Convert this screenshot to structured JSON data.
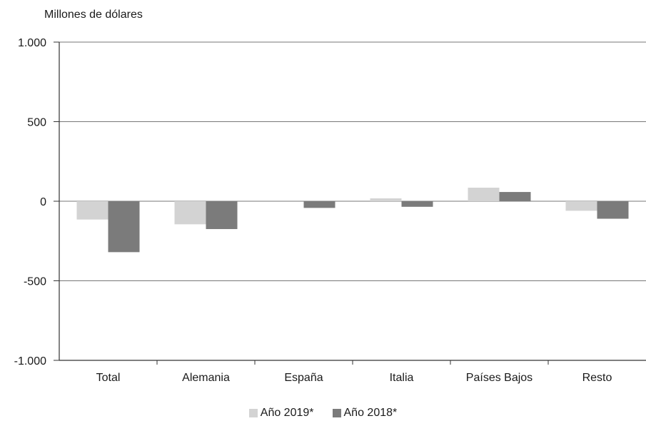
{
  "chart_data": {
    "type": "bar",
    "ylabel": "Millones de dólares",
    "categories": [
      "Total",
      "Alemania",
      "España",
      "Italia",
      "Países Bajos",
      "Resto"
    ],
    "ylim": [
      -1000,
      1000
    ],
    "yticks": [
      1000,
      500,
      0,
      -500,
      -1000
    ],
    "ytick_labels": [
      "1.000",
      "500",
      "0",
      "-500",
      "-1.000"
    ],
    "grid": true,
    "legend_position": "bottom-center",
    "series": [
      {
        "name": "Año 2019*",
        "color": "#d3d3d3",
        "values": [
          -115,
          -145,
          0,
          18,
          85,
          -60
        ]
      },
      {
        "name": "Año 2018*",
        "color": "#7b7b7b",
        "values": [
          -320,
          -175,
          -42,
          -35,
          58,
          -110
        ]
      }
    ]
  }
}
